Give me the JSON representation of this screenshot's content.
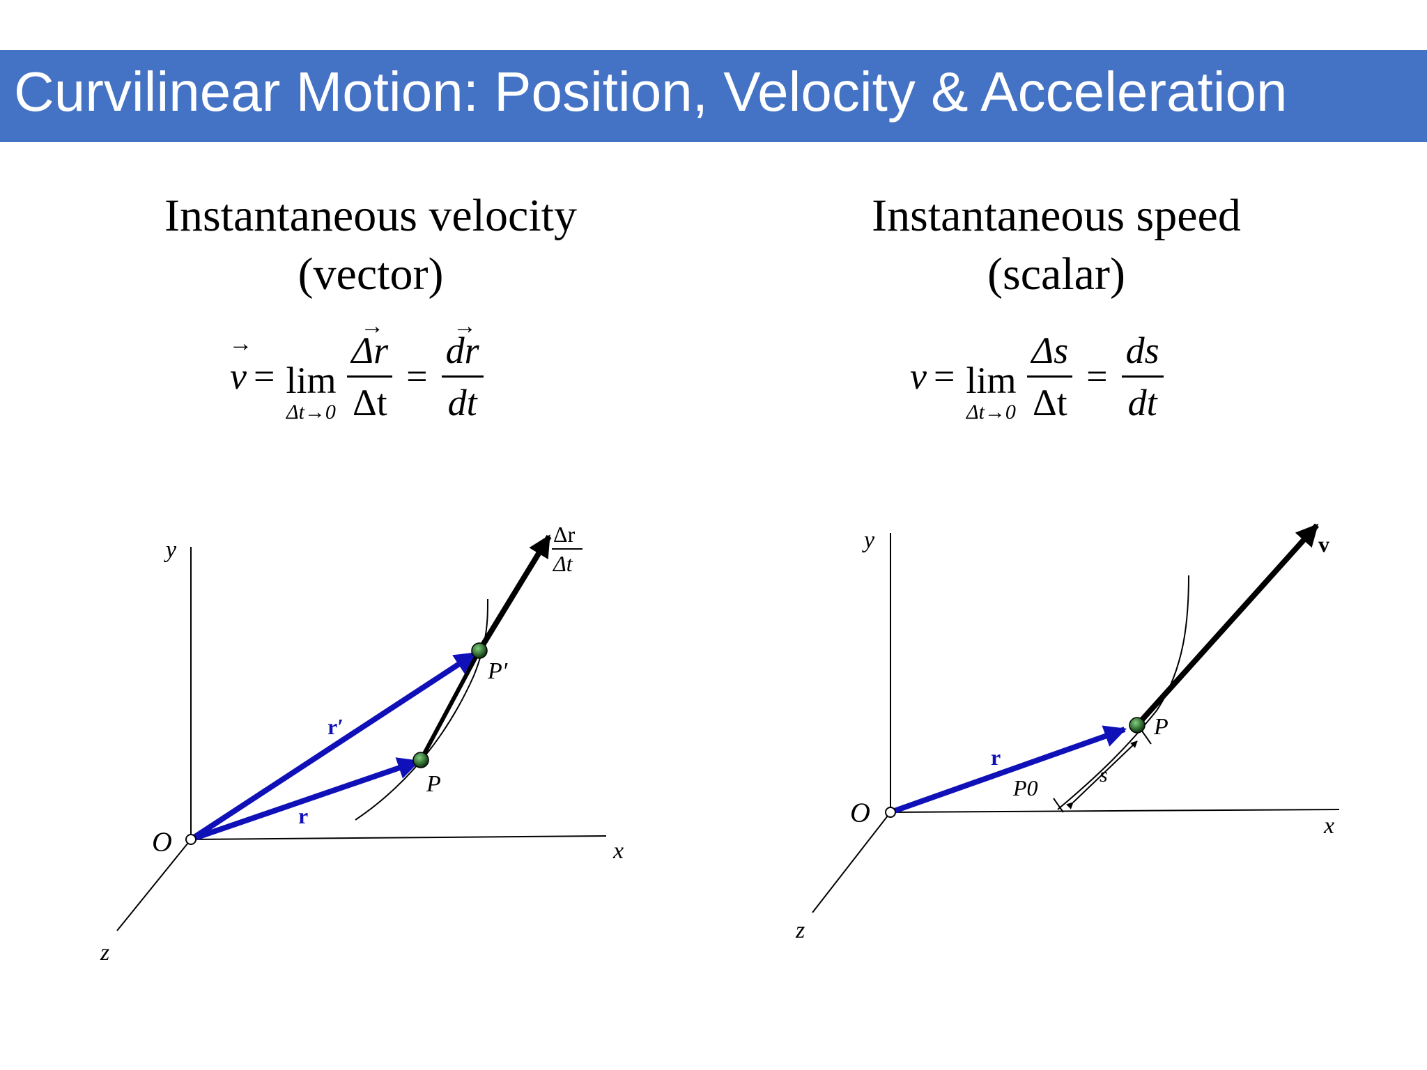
{
  "title": "Curvilinear Motion:  Position, Velocity & Acceleration",
  "left_heading": {
    "line1": "Instantaneous velocity",
    "line2": "(vector)"
  },
  "right_heading": {
    "line1": "Instantaneous speed",
    "line2": "(scalar)"
  },
  "formula_left": {
    "lhs": "v",
    "lim_word": "lim",
    "lim_sub": "Δt→0",
    "frac1_num": "Δr",
    "frac1_den": "Δt",
    "frac2_num": "dr",
    "frac2_den": "dt"
  },
  "formula_right": {
    "lhs": "v",
    "lim_word": "lim",
    "lim_sub": "Δt→0",
    "frac1_num": "Δs",
    "frac1_den": "Δt",
    "frac2_num": "ds",
    "frac2_den": "dt"
  },
  "diagram_left": {
    "axis_y": "y",
    "axis_x": "x",
    "axis_z": "z",
    "origin": "O",
    "vec_r": "r",
    "vec_r_prime": "r′",
    "point_p": "P",
    "point_p_prime": "P′",
    "ratio_num": "Δr",
    "ratio_den": "Δt"
  },
  "diagram_right": {
    "axis_y": "y",
    "axis_x": "x",
    "axis_z": "z",
    "origin": "O",
    "vec_r": "r",
    "point_p": "P",
    "point_p0": "P0",
    "arc_s": "s",
    "vel_v": "v"
  },
  "colors": {
    "title_bar": "#4472c4",
    "position_vector": "#1010b8",
    "velocity_vector": "#000000",
    "point": "#1f6b1f"
  }
}
